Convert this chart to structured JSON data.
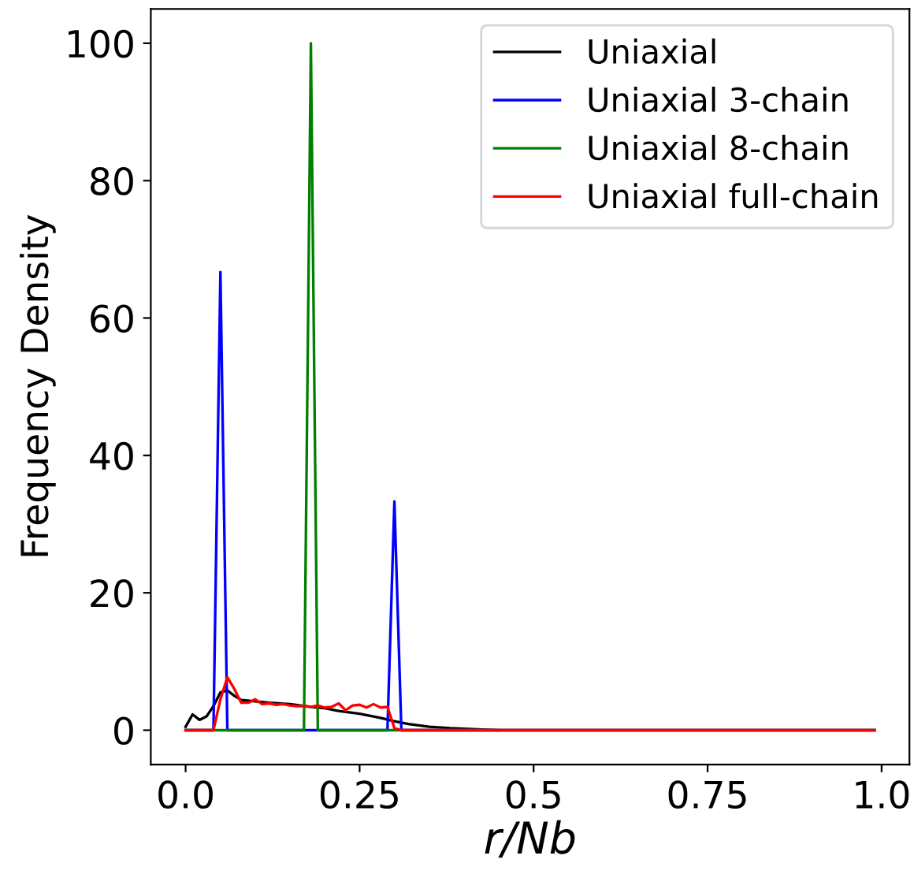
{
  "chart_data": {
    "type": "line",
    "xlabel": "r/Nb",
    "ylabel": "Frequency Density",
    "xlim": [
      -0.05,
      1.04
    ],
    "ylim": [
      -5,
      105
    ],
    "xticks": [
      {
        "value": 0,
        "label": "0.0"
      },
      0.25,
      {
        "value": 0.5,
        "label": "0.5"
      },
      0.75,
      {
        "value": 1,
        "label": "1.0"
      }
    ],
    "yticks": [
      0,
      20,
      40,
      60,
      80,
      100
    ],
    "grid": false,
    "legend": "top right",
    "marker": "none",
    "line_style": "solid",
    "series": [
      {
        "name": "Uniaxial",
        "color": "#000000",
        "x": [
          0,
          0.01,
          0.02,
          0.03,
          0.04,
          0.05,
          0.06,
          0.07,
          0.08,
          0.1,
          0.12,
          0.15,
          0.18,
          0.2,
          0.22,
          0.25,
          0.28,
          0.3,
          0.32,
          0.35,
          0.38,
          0.45
        ],
        "values": [
          0.5,
          2.3,
          1.5,
          2.0,
          3.5,
          5.5,
          5.8,
          5.0,
          4.4,
          4.2,
          4.0,
          3.8,
          3.4,
          3.2,
          2.8,
          2.4,
          1.8,
          1.3,
          0.9,
          0.5,
          0.3,
          0
        ]
      },
      {
        "name": "Uniaxial 3-chain",
        "color": "#0000ff",
        "x": [
          0,
          0.04,
          0.05,
          0.06,
          0.29,
          0.3,
          0.31,
          0.99
        ],
        "values": [
          0,
          0,
          66.7,
          0,
          0,
          33.3,
          0,
          0
        ]
      },
      {
        "name": "Uniaxial 8-chain",
        "color": "#008000",
        "x": [
          0,
          0.17,
          0.18,
          0.19,
          0.99
        ],
        "values": [
          0,
          0,
          100,
          0,
          0
        ]
      },
      {
        "name": "Uniaxial full-chain",
        "color": "#ff0000",
        "x": [
          0,
          0.04,
          0.05,
          0.06,
          0.07,
          0.08,
          0.09,
          0.1,
          0.11,
          0.12,
          0.13,
          0.14,
          0.15,
          0.16,
          0.17,
          0.18,
          0.19,
          0.2,
          0.21,
          0.22,
          0.23,
          0.24,
          0.25,
          0.26,
          0.27,
          0.28,
          0.29,
          0.3,
          0.31,
          0.99
        ],
        "values": [
          0,
          0,
          4.5,
          7.7,
          6,
          4,
          4,
          4.5,
          3.8,
          3.9,
          3.7,
          3.8,
          3.6,
          3.5,
          3.5,
          3.4,
          3.6,
          3.3,
          3.4,
          3.9,
          2.9,
          3.6,
          3.7,
          3.3,
          3.8,
          3.3,
          3.4,
          0.3,
          0,
          0
        ]
      }
    ]
  }
}
